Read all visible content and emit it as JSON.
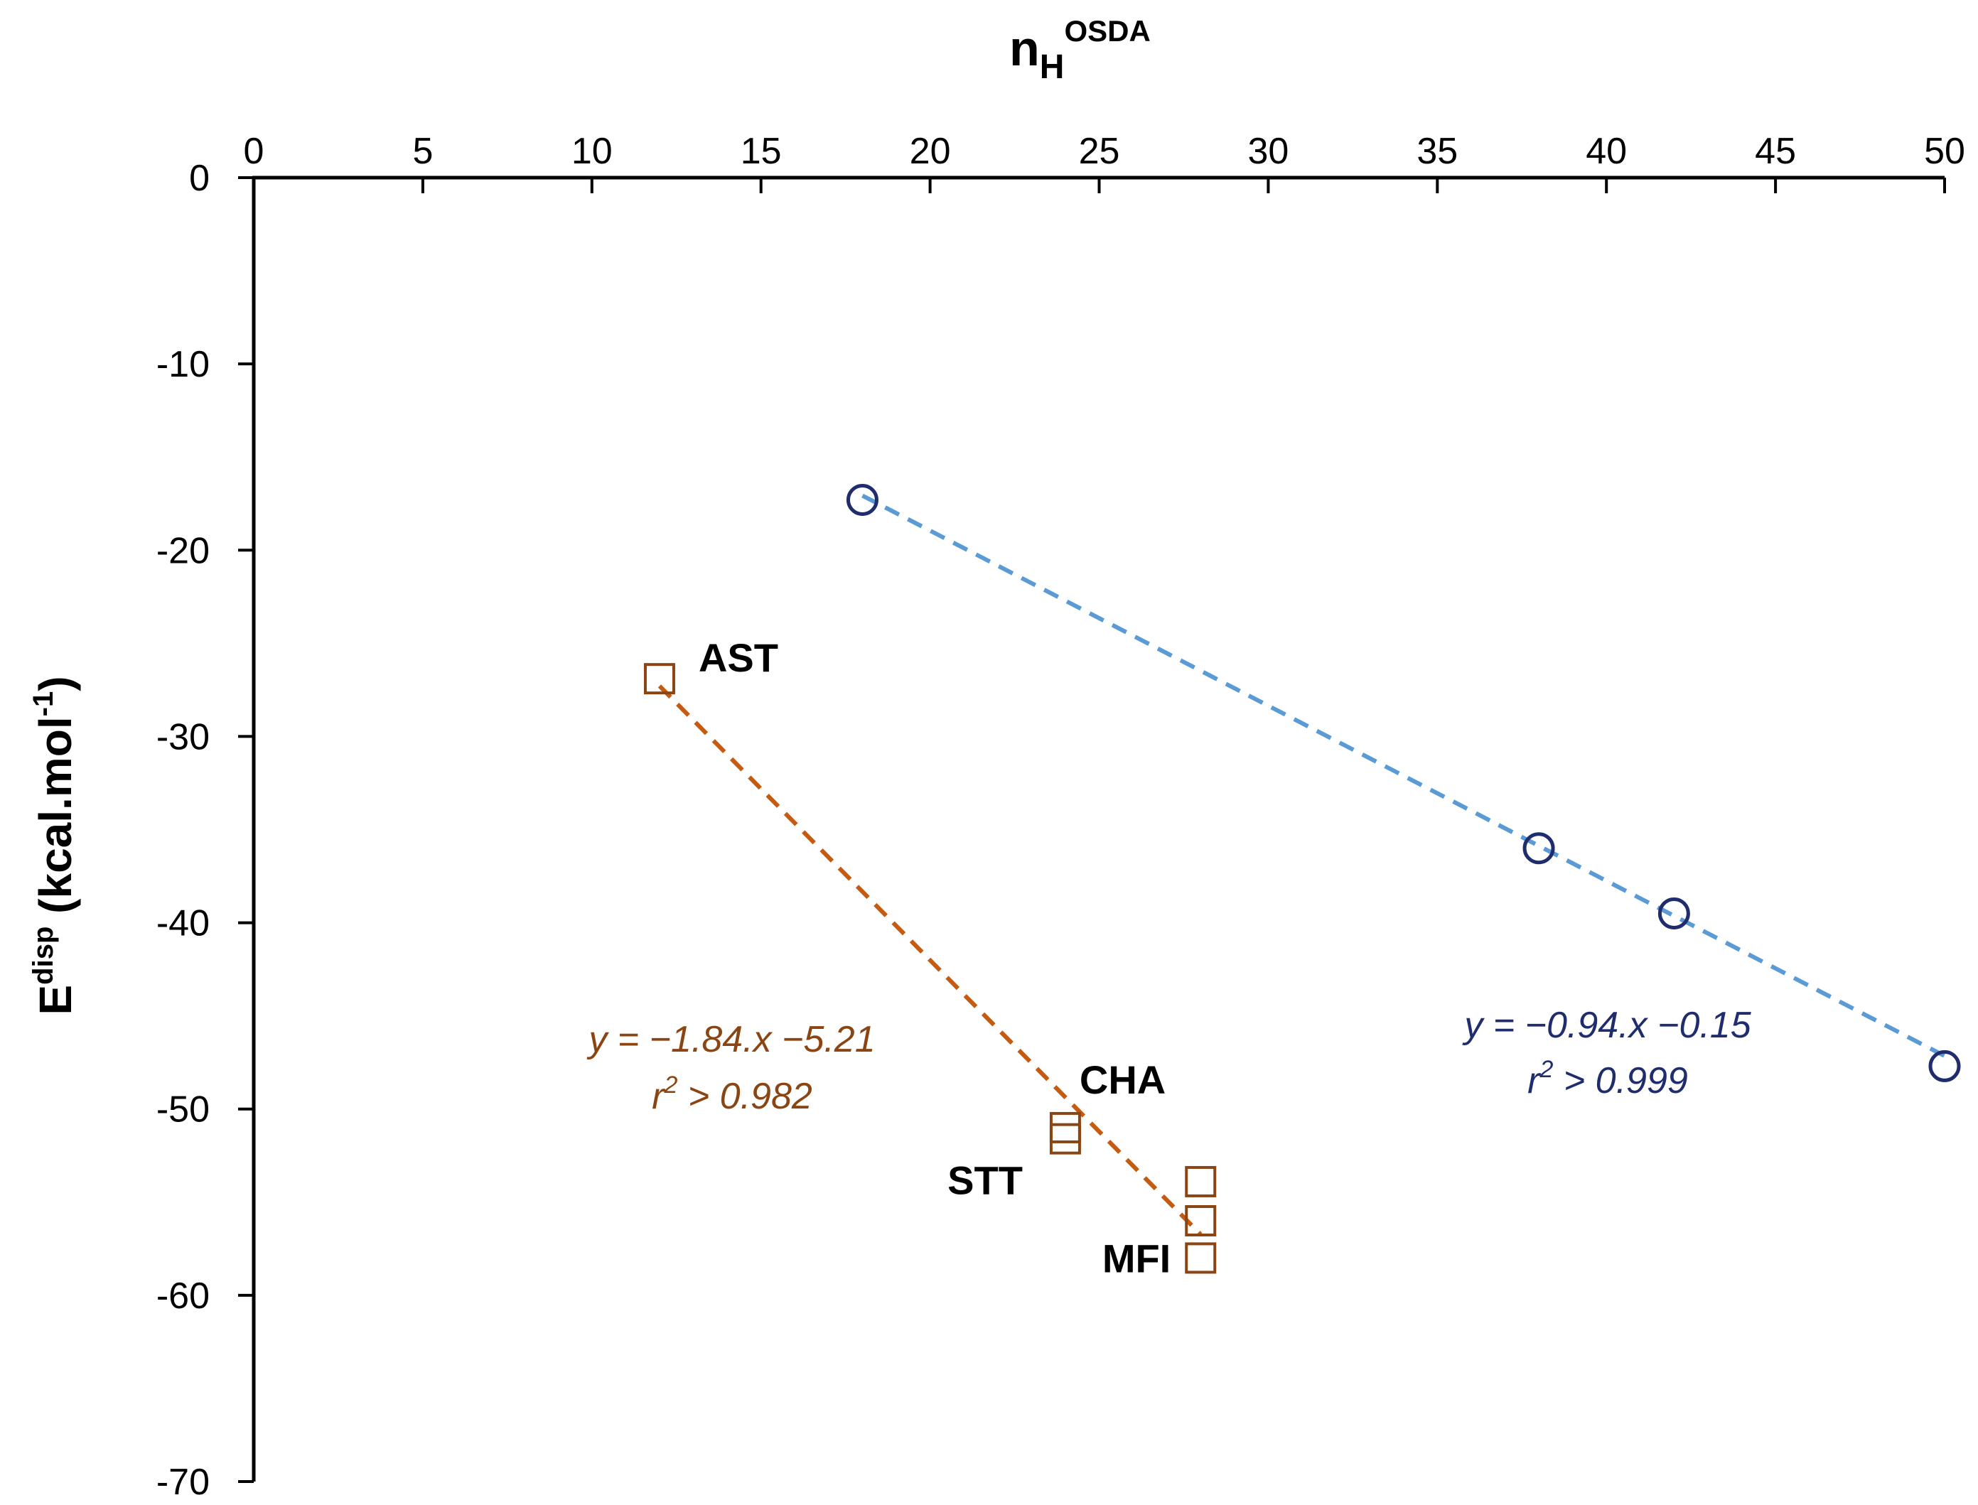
{
  "chart_data": {
    "type": "scatter",
    "title": "",
    "x_axis": {
      "label_main": "n",
      "label_sub": "H",
      "label_sup": "OSDA",
      "position": "top",
      "range": [
        0,
        50
      ],
      "ticks": [
        "0",
        "5",
        "10",
        "15",
        "20",
        "25",
        "30",
        "35",
        "40",
        "45",
        "50"
      ],
      "tick_values": [
        0,
        5,
        10,
        15,
        20,
        25,
        30,
        35,
        40,
        45,
        50
      ]
    },
    "y_axis": {
      "label_main": "E",
      "label_sup": "disp",
      "label_rest": " (kcal.mol",
      "label_sup2": "-1",
      "label_end": ")",
      "range": [
        -70,
        0
      ],
      "ticks": [
        "0",
        "-10",
        "-20",
        "-30",
        "-40",
        "-50",
        "-60",
        "-70"
      ],
      "tick_values": [
        0,
        -10,
        -20,
        -30,
        -40,
        -50,
        -60,
        -70
      ]
    },
    "series": [
      {
        "name": "circles",
        "marker": "circle",
        "color": "#1f2d6e",
        "points": [
          {
            "x": 18,
            "y": -17.3
          },
          {
            "x": 38,
            "y": -36.0
          },
          {
            "x": 42,
            "y": -39.5
          },
          {
            "x": 50,
            "y": -47.7
          }
        ],
        "trendline": {
          "x": [
            18,
            50
          ],
          "y": [
            -17.07,
            -47.15
          ],
          "color": "#5b9bd5",
          "style": "dashed"
        },
        "equation": "y = −0.94.x −0.15",
        "r2_main": "r",
        "r2_sup": "2",
        "r2_rest": " > 0.999"
      },
      {
        "name": "squares",
        "marker": "square",
        "color": "#8b4513",
        "points": [
          {
            "x": 12,
            "y": -26.9
          },
          {
            "x": 24,
            "y": -51.0
          },
          {
            "x": 24,
            "y": -51.6
          },
          {
            "x": 28,
            "y": -53.9
          },
          {
            "x": 28,
            "y": -56.0
          },
          {
            "x": 28,
            "y": -58.0
          }
        ],
        "trendline": {
          "x": [
            12,
            28
          ],
          "y": [
            -27.29,
            -56.73
          ],
          "color": "#c55a11",
          "style": "dashed"
        },
        "equation": "y = −1.84.x −5.21",
        "r2_main": "r",
        "r2_sup": "2",
        "r2_rest": " > 0.982"
      }
    ],
    "point_labels": [
      {
        "text": "AST",
        "x": 12,
        "y": -26.9
      },
      {
        "text": "CHA",
        "x": 24,
        "y": -51.0
      },
      {
        "text": "STT",
        "x": 24,
        "y": -51.6
      },
      {
        "text": "MFI",
        "x": 28,
        "y": -58.0
      }
    ]
  }
}
